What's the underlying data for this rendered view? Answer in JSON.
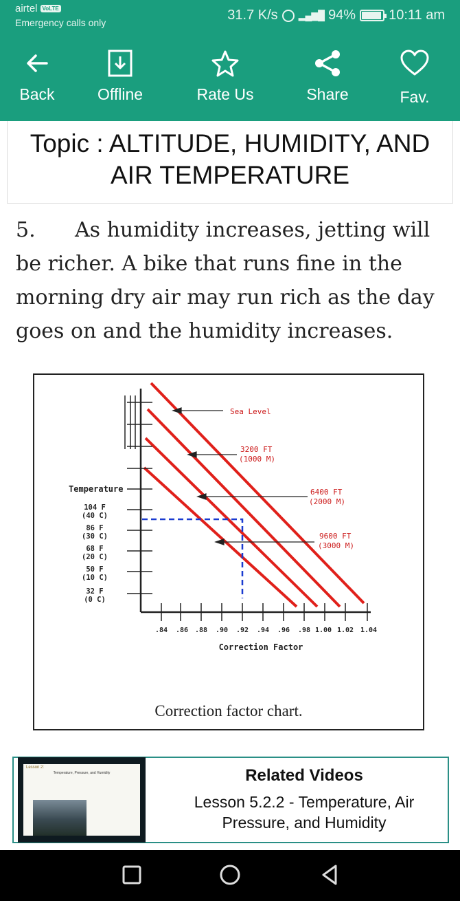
{
  "status_bar": {
    "carrier": "airtel",
    "volte_badge": "VoLTE",
    "emergency": "Emergency calls only",
    "speed": "31.7 K/s",
    "network": "4G",
    "battery": "94%",
    "battery_level": 0.94,
    "time": "10:11 am"
  },
  "toolbar": {
    "back_label": "Back",
    "offline_label": "Offline",
    "rate_label": "Rate Us",
    "share_label": "Share",
    "fav_label": "Fav."
  },
  "topic": {
    "title": "Topic : ALTITUDE, HUMIDITY, AND AIR TEMPERATURE"
  },
  "content": {
    "paragraph_number": "5.",
    "paragraph_text": "As humidity increases, jetting will be richer.  A bike that runs fine in the morning dry air may run rich as the day goes on and the humidity increases."
  },
  "figure": {
    "caption": "Correction factor chart.",
    "y_axis_title": "Temperature",
    "x_axis_title": "Correction Factor",
    "temperature_labels": [
      {
        "f": "104 F",
        "c": "(40 C)"
      },
      {
        "f": "86 F",
        "c": "(30 C)"
      },
      {
        "f": "68 F",
        "c": "(20 C)"
      },
      {
        "f": "50 F",
        "c": "(10 C)"
      },
      {
        "f": "32 F",
        "c": "(0 C)"
      }
    ],
    "x_tick_labels": [
      ".84",
      ".86",
      ".88",
      ".90",
      ".92",
      ".94",
      ".96",
      ".98",
      "1.00",
      "1.02",
      "1.04"
    ],
    "altitude_labels": [
      {
        "line1": "Sea Level",
        "line2": ""
      },
      {
        "line1": "3200 FT",
        "line2": "(1000 M)"
      },
      {
        "line1": "6400 FT",
        "line2": "(2000 M)"
      },
      {
        "line1": "9600 FT",
        "line2": "(3000 M)"
      }
    ],
    "line_color": "#e0201a",
    "guide_color": "#1a3bd0"
  },
  "related": {
    "heading": "Related Videos",
    "description": "Lesson 5.2.2 - Temperature, Air Pressure, and Humidity",
    "thumb_lesson": "Lesson 2:",
    "thumb_subtitle": "Temperature, Pressure, and Humidity"
  }
}
